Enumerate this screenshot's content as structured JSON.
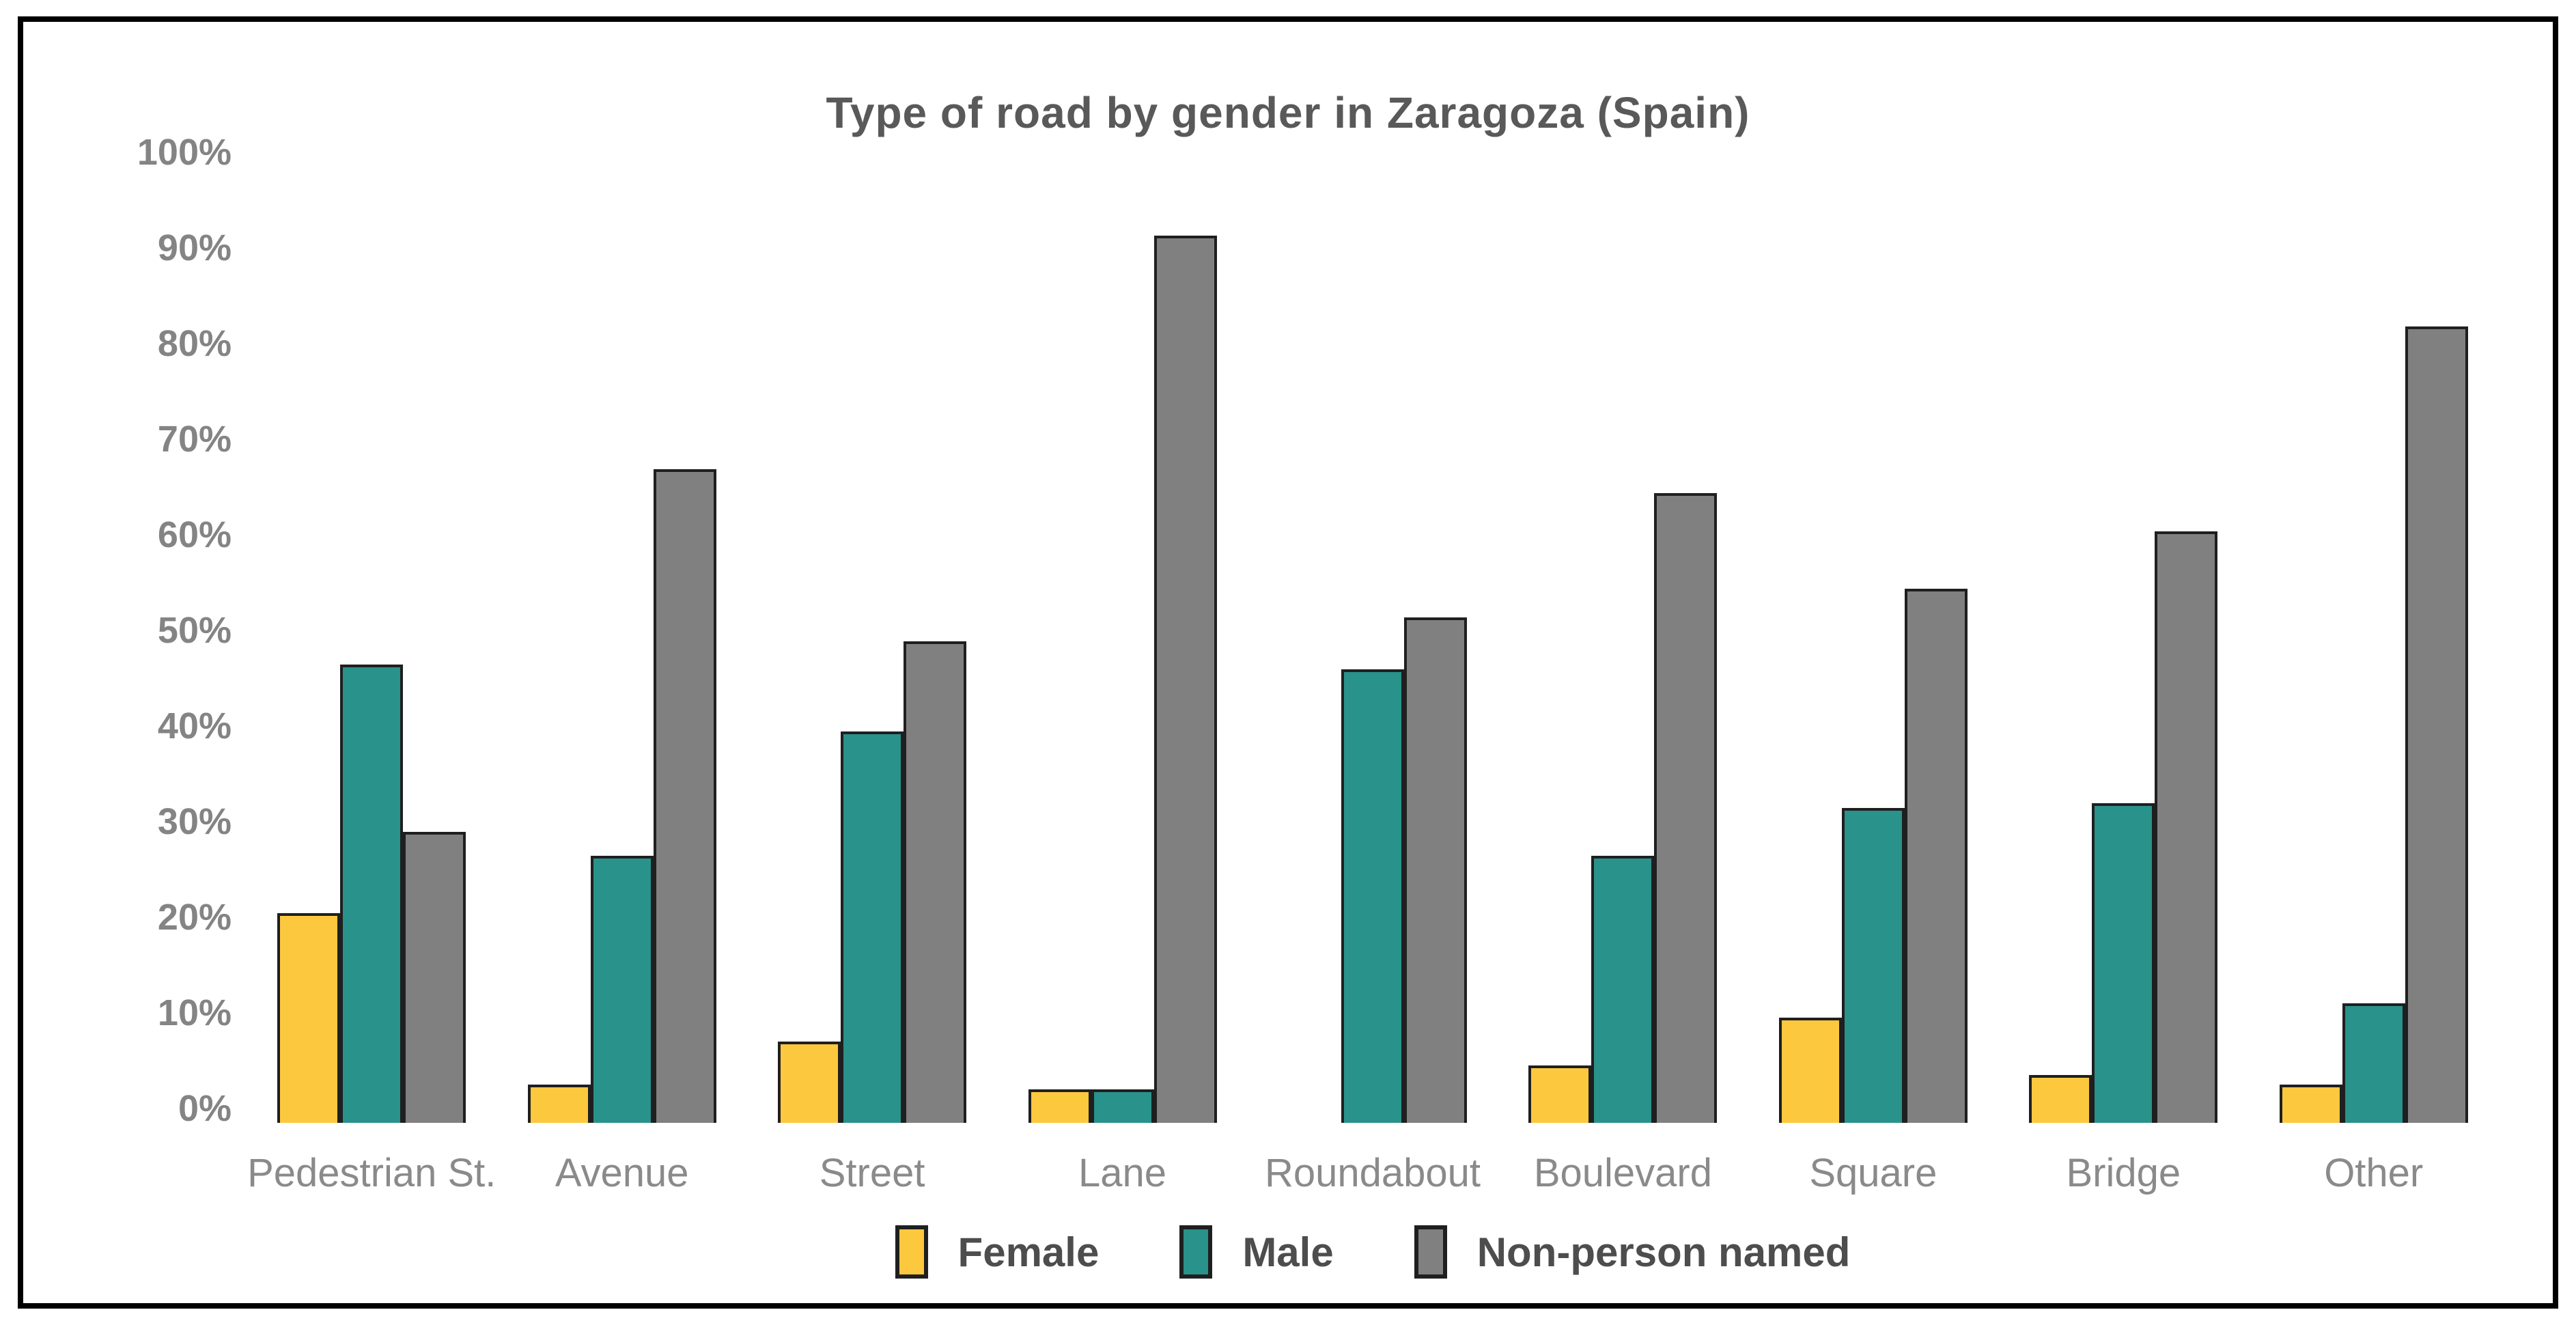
{
  "frame": {
    "border_color": "#000000",
    "background": "#ffffff"
  },
  "chart_data": {
    "type": "bar",
    "title": "Type of road by gender in Zaragoza (Spain)",
    "categories": [
      "Pedestrian St.",
      "Avenue",
      "Street",
      "Lane",
      "Roundabout",
      "Boulevard",
      "Square",
      "Bridge",
      "Other"
    ],
    "series": [
      {
        "name": "Female",
        "color": "#FCC83E",
        "values": [
          22,
          4,
          8.5,
          3.5,
          0,
          6,
          11,
          5,
          4
        ]
      },
      {
        "name": "Male",
        "color": "#29928A",
        "values": [
          48,
          28,
          41,
          3.5,
          47.5,
          28,
          33,
          33.5,
          12.5
        ]
      },
      {
        "name": "Non-person named",
        "color": "#808080",
        "values": [
          30.5,
          68.5,
          50.5,
          93,
          53,
          66,
          56,
          62,
          83.5
        ]
      }
    ],
    "yticks": [
      "0%",
      "10%",
      "20%",
      "30%",
      "40%",
      "50%",
      "60%",
      "70%",
      "80%",
      "90%",
      "100%"
    ],
    "ylim": [
      0,
      100
    ],
    "xlabel": "",
    "ylabel": "",
    "grid": false,
    "legend_position": "bottom",
    "bar_outline_color": "#1f1f1f",
    "text_colors": {
      "title": "#595959",
      "ticks": "#848484",
      "categories": "#8a8a8a",
      "legend": "#4d4d4d"
    }
  }
}
